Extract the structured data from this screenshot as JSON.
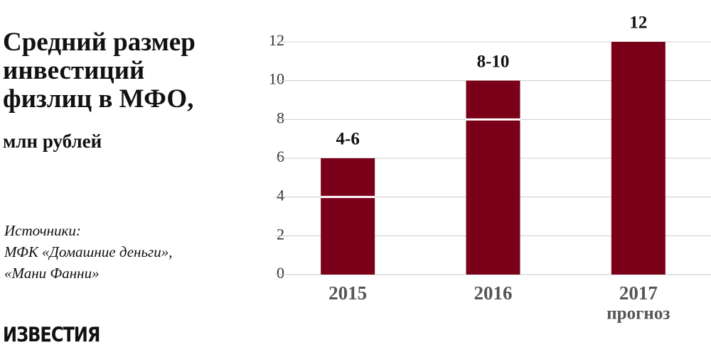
{
  "chart_data": {
    "type": "range-bar",
    "title": "Средний размер инвестиций физлиц в МФО,",
    "subtitle": "млн рублей",
    "source": [
      "Источники:",
      "МФК «Домашние деньги»,",
      "«Мани Фанни»"
    ],
    "logo": "ИЗВЕСТИЯ",
    "categories": [
      "2015",
      "2016",
      "2017"
    ],
    "category_notes": [
      null,
      null,
      "прогноз"
    ],
    "low": [
      4,
      8,
      null
    ],
    "values": [
      6,
      10,
      12
    ],
    "value_labels": [
      "4-6",
      "8-10",
      "12"
    ],
    "color": "#7a0019",
    "ylim": [
      0,
      12
    ],
    "yticks": [
      0,
      2,
      4,
      6,
      8,
      10,
      12
    ],
    "grid": true
  }
}
